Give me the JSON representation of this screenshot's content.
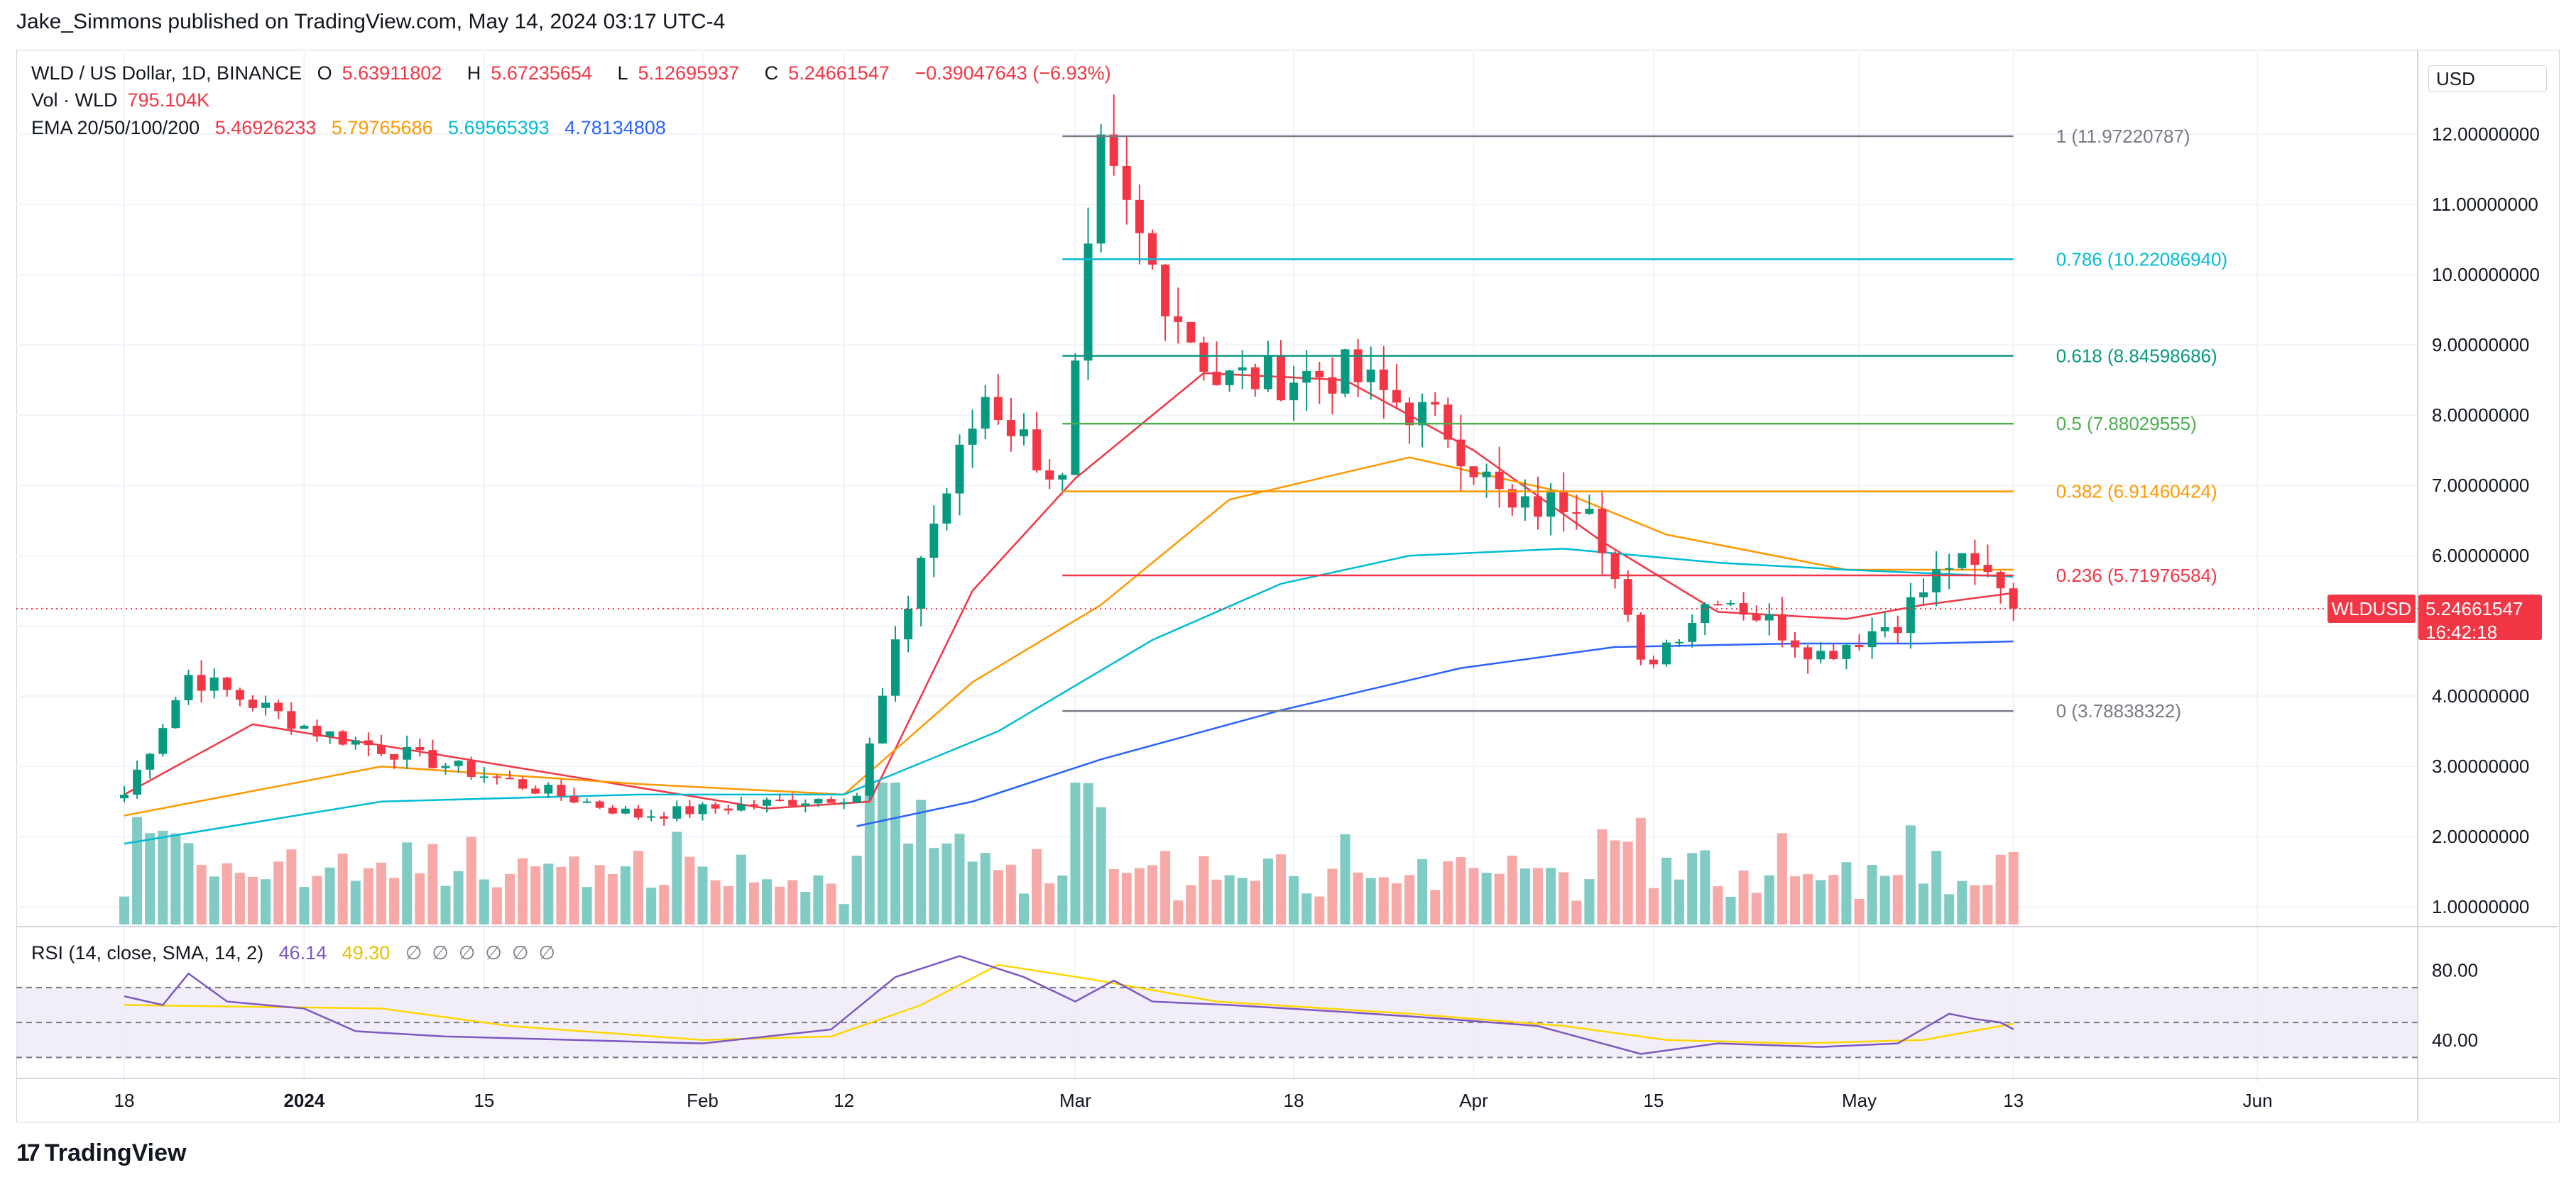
{
  "header": {
    "publisher": "Jake_Simmons published on TradingView.com, May 14, 2024 03:17 UTC-4"
  },
  "legend": {
    "symbol": "WLD / US Dollar, 1D, BINANCE",
    "o_label": "O",
    "o_value": "5.63911802",
    "h_label": "H",
    "h_value": "5.67235654",
    "l_label": "L",
    "l_value": "5.12695937",
    "c_label": "C",
    "c_value": "5.24661547",
    "change": "−0.39047643 (−6.93%)",
    "vol_label": "Vol · WLD",
    "vol_value": "795.104K",
    "ema_label": "EMA 20/50/100/200",
    "ema20": "5.46926233",
    "ema50": "5.79765686",
    "ema100": "5.69565393",
    "ema200": "4.78134808",
    "rsi_label": "RSI (14, close, SMA, 14, 2)",
    "rsi_value": "46.14",
    "rsi_sma": "49.30",
    "hidden_icons": [
      "∅",
      "∅",
      "∅",
      "∅",
      "∅",
      "∅"
    ]
  },
  "price_axis": {
    "currency": "USD",
    "ticks": [
      "12.00000000",
      "11.00000000",
      "10.00000000",
      "9.00000000",
      "8.00000000",
      "7.00000000",
      "6.00000000",
      "5.00000000",
      "4.00000000",
      "3.00000000",
      "2.00000000",
      "1.00000000"
    ],
    "tick_values": [
      12,
      11,
      10,
      9,
      8,
      7,
      6,
      5,
      4,
      3,
      2,
      1
    ],
    "rsi_ticks": [
      "80.00",
      "40.00"
    ],
    "rsi_tick_values": [
      80,
      40
    ],
    "ticker_badge": "WLDUSD",
    "price_badge": "5.24661547",
    "countdown": "16:42:18",
    "last_price": 5.24661547
  },
  "time_axis": {
    "labels": [
      {
        "text": "18",
        "day": 0
      },
      {
        "text": "2024",
        "day": 14
      },
      {
        "text": "15",
        "day": 28
      },
      {
        "text": "Feb",
        "day": 45
      },
      {
        "text": "12",
        "day": 56
      },
      {
        "text": "Mar",
        "day": 74
      },
      {
        "text": "18",
        "day": 91
      },
      {
        "text": "Apr",
        "day": 105
      },
      {
        "text": "15",
        "day": 119
      },
      {
        "text": "May",
        "day": 135
      },
      {
        "text": "13",
        "day": 147
      },
      {
        "text": "Jun",
        "day": 166
      }
    ]
  },
  "fib": {
    "levels": [
      {
        "label": "1 (11.97220787)",
        "value": 11.97220787,
        "color": "#787b86"
      },
      {
        "label": "0.786 (10.22086940)",
        "value": 10.2208694,
        "color": "#00bcd4"
      },
      {
        "label": "0.618 (8.84598686)",
        "value": 8.84598686,
        "color": "#089981"
      },
      {
        "label": "0.5 (7.88029555)",
        "value": 7.88029555,
        "color": "#4caf50"
      },
      {
        "label": "0.382 (6.91460424)",
        "value": 6.91460424,
        "color": "#ff9800"
      },
      {
        "label": "0.236 (5.71976584)",
        "value": 5.71976584,
        "color": "#f23645"
      },
      {
        "label": "0 (3.78838322)",
        "value": 3.78838322,
        "color": "#787b86"
      }
    ],
    "start_day": 73,
    "end_day": 147
  },
  "chart_data": {
    "type": "candlestick",
    "title": "WLD / US Dollar, 1D, BINANCE",
    "ylim": [
      0.75,
      12.8
    ],
    "up_color": "#089981",
    "down_color": "#f23645",
    "key_points": [
      {
        "day": 0,
        "close": 2.6
      },
      {
        "day": 5,
        "close": 4.3
      },
      {
        "day": 15,
        "close": 3.5
      },
      {
        "day": 40,
        "close": 2.3
      },
      {
        "day": 57,
        "close": 2.6
      },
      {
        "day": 62,
        "close": 6.0
      },
      {
        "day": 67,
        "close": 8.3
      },
      {
        "day": 73,
        "close": 7.0
      },
      {
        "day": 76,
        "close": 11.6
      },
      {
        "day": 80,
        "close": 10.1
      },
      {
        "day": 85,
        "close": 8.5
      },
      {
        "day": 95,
        "close": 8.6
      },
      {
        "day": 103,
        "close": 7.8
      },
      {
        "day": 108,
        "close": 6.6
      },
      {
        "day": 114,
        "close": 6.9
      },
      {
        "day": 118,
        "close": 4.4
      },
      {
        "day": 124,
        "close": 5.5
      },
      {
        "day": 132,
        "close": 4.6
      },
      {
        "day": 138,
        "close": 5.1
      },
      {
        "day": 142,
        "close": 5.9
      },
      {
        "day": 146,
        "close": 5.64
      },
      {
        "day": 147,
        "close": 5.25
      }
    ],
    "volume_colors": {
      "up": "#80cbc4",
      "down": "#f7a9a7"
    },
    "ema": [
      {
        "name": "EMA 20",
        "color": "#f23645",
        "points": [
          [
            0,
            2.6
          ],
          [
            10,
            3.6
          ],
          [
            30,
            3.0
          ],
          [
            50,
            2.4
          ],
          [
            58,
            2.5
          ],
          [
            66,
            5.5
          ],
          [
            74,
            7.1
          ],
          [
            84,
            8.6
          ],
          [
            95,
            8.5
          ],
          [
            105,
            7.5
          ],
          [
            115,
            6.2
          ],
          [
            124,
            5.2
          ],
          [
            134,
            5.1
          ],
          [
            140,
            5.3
          ],
          [
            147,
            5.47
          ]
        ]
      },
      {
        "name": "EMA 50",
        "color": "#ff9800",
        "points": [
          [
            0,
            2.3
          ],
          [
            20,
            3.0
          ],
          [
            40,
            2.75
          ],
          [
            56,
            2.6
          ],
          [
            66,
            4.2
          ],
          [
            76,
            5.3
          ],
          [
            86,
            6.8
          ],
          [
            100,
            7.4
          ],
          [
            112,
            6.9
          ],
          [
            120,
            6.3
          ],
          [
            134,
            5.8
          ],
          [
            147,
            5.8
          ]
        ]
      },
      {
        "name": "EMA 100",
        "color": "#00bcd4",
        "points": [
          [
            0,
            1.9
          ],
          [
            20,
            2.5
          ],
          [
            40,
            2.6
          ],
          [
            56,
            2.6
          ],
          [
            68,
            3.5
          ],
          [
            80,
            4.8
          ],
          [
            90,
            5.6
          ],
          [
            100,
            6.0
          ],
          [
            112,
            6.1
          ],
          [
            124,
            5.9
          ],
          [
            134,
            5.8
          ],
          [
            147,
            5.7
          ]
        ]
      },
      {
        "name": "EMA 200",
        "color": "#2962ff",
        "points": [
          [
            57,
            2.15
          ],
          [
            66,
            2.5
          ],
          [
            76,
            3.1
          ],
          [
            90,
            3.8
          ],
          [
            104,
            4.4
          ],
          [
            116,
            4.7
          ],
          [
            130,
            4.75
          ],
          [
            140,
            4.75
          ],
          [
            147,
            4.78
          ]
        ]
      }
    ],
    "rsi": {
      "upper": 70,
      "lower": 30,
      "mid": 50,
      "ylim": [
        20,
        100
      ],
      "line_color": "#7e57c2",
      "sma_color": "#ffd600",
      "points": [
        [
          0,
          65
        ],
        [
          3,
          60
        ],
        [
          5,
          78
        ],
        [
          8,
          62
        ],
        [
          14,
          58
        ],
        [
          18,
          45
        ],
        [
          25,
          42
        ],
        [
          35,
          40
        ],
        [
          45,
          38
        ],
        [
          55,
          46
        ],
        [
          60,
          76
        ],
        [
          65,
          88
        ],
        [
          70,
          76
        ],
        [
          74,
          62
        ],
        [
          77,
          74
        ],
        [
          80,
          62
        ],
        [
          86,
          60
        ],
        [
          95,
          56
        ],
        [
          103,
          52
        ],
        [
          110,
          48
        ],
        [
          118,
          32
        ],
        [
          124,
          38
        ],
        [
          132,
          36
        ],
        [
          138,
          38
        ],
        [
          142,
          55
        ],
        [
          144,
          52
        ],
        [
          146,
          50
        ],
        [
          147,
          46.14
        ]
      ],
      "sma_points": [
        [
          0,
          60
        ],
        [
          20,
          58
        ],
        [
          30,
          48
        ],
        [
          45,
          40
        ],
        [
          55,
          42
        ],
        [
          62,
          60
        ],
        [
          68,
          83
        ],
        [
          75,
          75
        ],
        [
          85,
          62
        ],
        [
          100,
          55
        ],
        [
          112,
          48
        ],
        [
          120,
          40
        ],
        [
          130,
          38
        ],
        [
          140,
          40
        ],
        [
          147,
          49.3
        ]
      ]
    }
  },
  "footer": {
    "brand": "TradingView",
    "logo": "17"
  }
}
